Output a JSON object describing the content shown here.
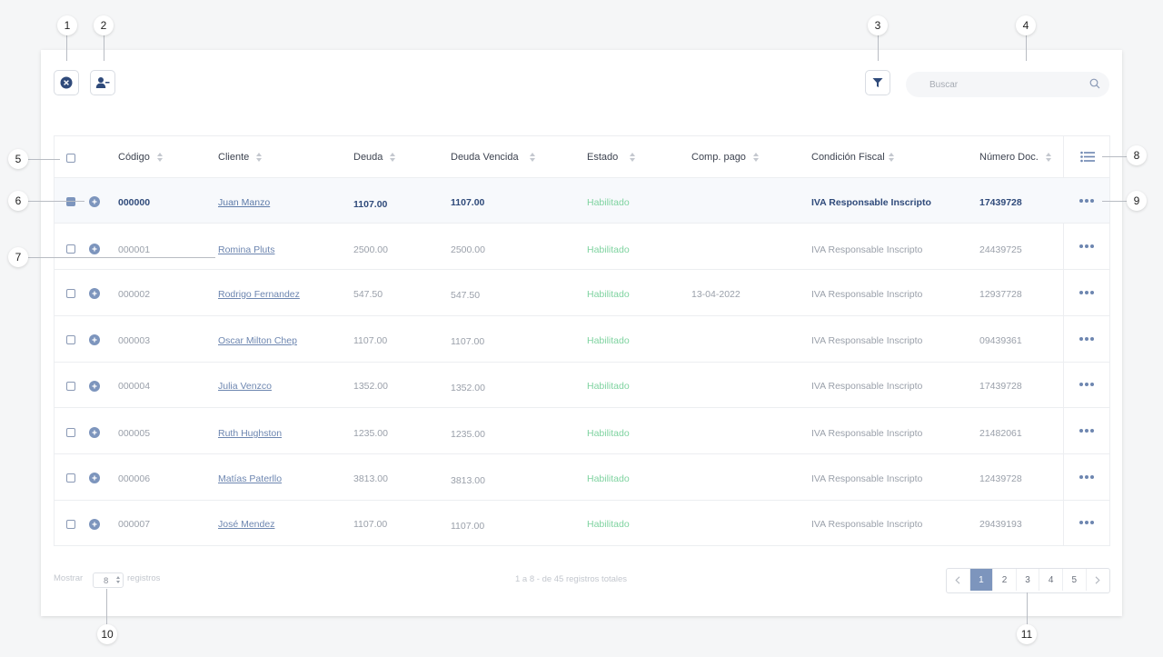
{
  "toolbar": {
    "close_icon": "close-circle-icon",
    "remove_user_icon": "user-minus-icon",
    "filter_icon": "filter-icon",
    "search_placeholder": "Buscar"
  },
  "table": {
    "headers": {
      "codigo": "Código",
      "cliente": "Cliente",
      "deuda": "Deuda",
      "deuda_vencida": "Deuda Vencida",
      "estado": "Estado",
      "comp_pago": "Comp. pago",
      "condicion_fiscal": "Condición Fiscal",
      "numero_doc": "Número Doc."
    },
    "rows": [
      {
        "codigo": "000000",
        "cliente": "Juan Manzo",
        "deuda": "1107.00",
        "deuda_vencida": "1107.00",
        "estado": "Habilitado",
        "comp_pago": "",
        "condicion": "IVA Responsable Inscripto",
        "doc": "17439728",
        "selected": true
      },
      {
        "codigo": "000001",
        "cliente": "Romina Pluts",
        "deuda": "2500.00",
        "deuda_vencida": "2500.00",
        "estado": "Habilitado",
        "comp_pago": "",
        "condicion": "IVA Responsable Inscripto",
        "doc": "24439725",
        "selected": false
      },
      {
        "codigo": "000002",
        "cliente": "Rodrigo Fernandez",
        "deuda": "547.50",
        "deuda_vencida": "547.50",
        "estado": "Habilitado",
        "comp_pago": "13-04-2022",
        "condicion": "IVA Responsable Inscripto",
        "doc": "12937728",
        "selected": false
      },
      {
        "codigo": "000003",
        "cliente": "Oscar Milton Chep",
        "deuda": "1107.00",
        "deuda_vencida": "1107.00",
        "estado": "Habilitado",
        "comp_pago": "",
        "condicion": "IVA Responsable Inscripto",
        "doc": "09439361",
        "selected": false
      },
      {
        "codigo": "000004",
        "cliente": "Julia Venzco",
        "deuda": "1352.00",
        "deuda_vencida": "1352.00",
        "estado": "Habilitado",
        "comp_pago": "",
        "condicion": "IVA Responsable Inscripto",
        "doc": "17439728",
        "selected": false
      },
      {
        "codigo": "000005",
        "cliente": "Ruth Hughston",
        "deuda": "1235.00",
        "deuda_vencida": "1235.00",
        "estado": "Habilitado",
        "comp_pago": "",
        "condicion": "IVA Responsable Inscripto",
        "doc": "21482061",
        "selected": false
      },
      {
        "codigo": "000006",
        "cliente": "Matías Paterllo",
        "deuda": "3813.00",
        "deuda_vencida": "3813.00",
        "estado": "Habilitado",
        "comp_pago": "",
        "condicion": "IVA Responsable Inscripto",
        "doc": "12439728",
        "selected": false
      },
      {
        "codigo": "000007",
        "cliente": "José Mendez",
        "deuda": "1107.00",
        "deuda_vencida": "1107.00",
        "estado": "Habilitado",
        "comp_pago": "",
        "condicion": "IVA Responsable Inscripto",
        "doc": "29439193",
        "selected": false
      }
    ]
  },
  "footer": {
    "show_label": "Mostrar",
    "page_size": "8",
    "records_label": "registros",
    "summary": "1 a 8 - de 45 registros totales",
    "pages": [
      "1",
      "2",
      "3",
      "4",
      "5"
    ],
    "current_page": "1"
  },
  "callouts": [
    "1",
    "2",
    "3",
    "4",
    "5",
    "6",
    "7",
    "8",
    "9",
    "10",
    "11"
  ],
  "colors": {
    "accent": "#7d95bd",
    "status_ok": "#7fd3a0",
    "link": "#6d86b0",
    "selected_text": "#2f4a7a"
  }
}
